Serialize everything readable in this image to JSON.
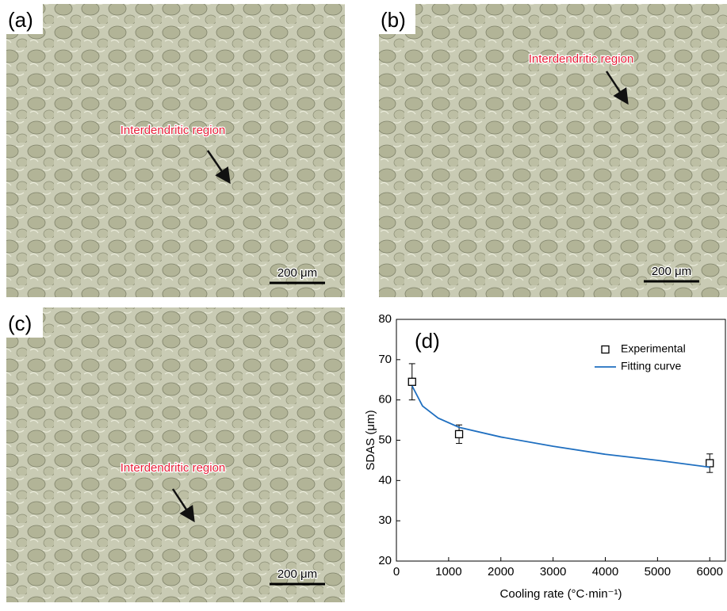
{
  "panels": [
    {
      "label": "(a)",
      "annotation": "Interdendritic region",
      "scale_bar": "200 μm"
    },
    {
      "label": "(b)",
      "annotation": "Interdendritic region",
      "scale_bar": "200 μm"
    },
    {
      "label": "(c)",
      "annotation": "Interdendritic region",
      "scale_bar": "200 μm"
    }
  ],
  "chart_data": {
    "type": "scatter",
    "label": "(d)",
    "x_label": "Cooling rate (°C·min⁻¹)",
    "y_label": "SDAS (μm)",
    "xlim": [
      0,
      6300
    ],
    "xticks": [
      0,
      1000,
      2000,
      3000,
      4000,
      5000,
      6000
    ],
    "ylim": [
      20,
      80
    ],
    "yticks": [
      20,
      30,
      40,
      50,
      60,
      70,
      80
    ],
    "legend": "upper right",
    "series": [
      {
        "name": "Experimental",
        "color": "#000000",
        "marker": "square",
        "x": [
          300,
          1200,
          6000
        ],
        "values": [
          64.5,
          51.5,
          44.3
        ],
        "errors": [
          4.5,
          2.3,
          2.3
        ]
      },
      {
        "name": "Fitting curve",
        "color": "#1f6fc0",
        "marker": "line",
        "x": [
          300,
          500,
          800,
          1200,
          2000,
          3000,
          4000,
          5000,
          6000
        ],
        "values": [
          63.5,
          58.5,
          55.5,
          53.2,
          50.8,
          48.5,
          46.5,
          45,
          43.3
        ]
      }
    ]
  }
}
